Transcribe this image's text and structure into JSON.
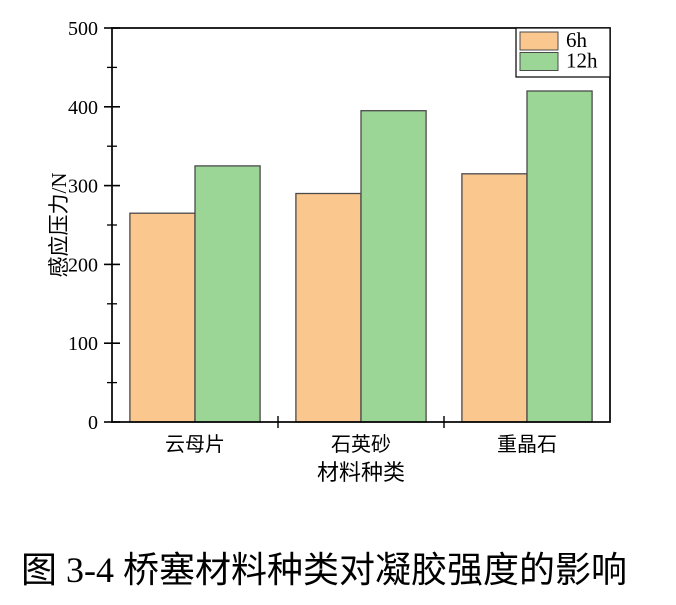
{
  "caption": "图 3-4 桥塞材料种类对凝胶强度的影响",
  "chart_data": {
    "type": "bar",
    "title": "",
    "categories": [
      "云母片",
      "石英砂",
      "重晶石"
    ],
    "series": [
      {
        "name": "6h",
        "color": "#FAC78E",
        "values": [
          265,
          290,
          315
        ]
      },
      {
        "name": "12h",
        "color": "#9BD696",
        "values": [
          325,
          395,
          420
        ]
      }
    ],
    "xlabel": "材料种类",
    "ylabel": "感应压力/N",
    "ylim": [
      0,
      500
    ],
    "ytick_step": 100,
    "yminor_step": 50,
    "ytick_labels": [
      "0",
      "100",
      "200",
      "300",
      "400",
      "500"
    ],
    "legend": {
      "position": "top-right",
      "entries": [
        "6h",
        "12h"
      ]
    },
    "grid": false,
    "bar_edge_color": "#4A4A4A",
    "axis_color": "#000000",
    "background": "#FFFFFF"
  }
}
